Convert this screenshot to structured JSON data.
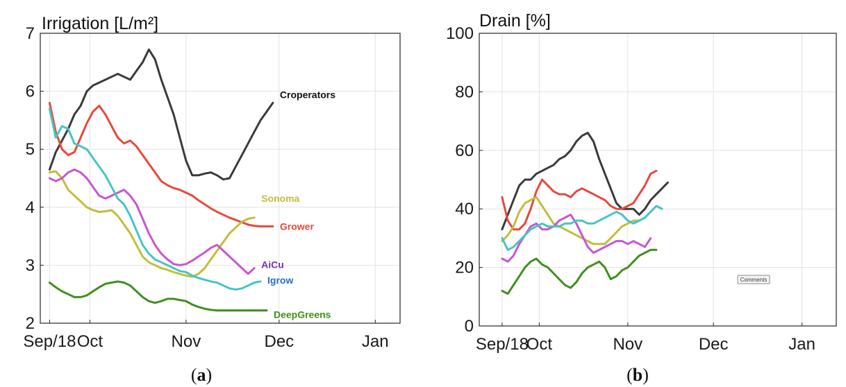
{
  "chart_data": [
    {
      "type": "line",
      "title": "Irrigation [L/m²]",
      "xlabel": "",
      "ylabel": "",
      "panel_label": {
        "open": "(",
        "letter": "a",
        "close": ")"
      },
      "ylim": [
        2,
        7
      ],
      "yticks": [
        2,
        3,
        4,
        5,
        6,
        7
      ],
      "xlim_days": [
        -3,
        113
      ],
      "xticks": [
        {
          "day": 0,
          "label": "Sep/18"
        },
        {
          "day": 13,
          "label": "Oct"
        },
        {
          "day": 44,
          "label": "Nov"
        },
        {
          "day": 74,
          "label": "Dec"
        },
        {
          "day": 105,
          "label": "Jan"
        }
      ],
      "grid": true,
      "series": [
        {
          "name": "Croperators",
          "color": "#3a3a3a",
          "x": [
            0,
            2,
            4,
            6,
            8,
            10,
            12,
            14,
            16,
            18,
            20,
            22,
            24,
            26,
            28,
            30,
            32,
            34,
            36,
            38,
            40,
            42,
            44,
            46,
            48,
            50,
            52,
            54,
            56,
            58,
            60,
            62,
            64,
            66,
            68,
            70,
            72,
            74,
            76,
            78
          ],
          "y": [
            4.65,
            4.95,
            5.15,
            5.35,
            5.6,
            5.75,
            6.0,
            6.1,
            6.15,
            6.2,
            6.25,
            6.3,
            6.25,
            6.2,
            6.35,
            6.5,
            6.72,
            6.55,
            6.2,
            5.9,
            5.6,
            5.2,
            4.8,
            4.55,
            4.55,
            4.58,
            4.6,
            4.55,
            4.48,
            4.5,
            4.7,
            4.9,
            5.1,
            5.3,
            5.5,
            5.65,
            5.8,
            null,
            null,
            null
          ]
        },
        {
          "name": "Grower",
          "color": "#e8483a",
          "x": [
            0,
            2,
            4,
            6,
            8,
            10,
            12,
            14,
            16,
            18,
            20,
            22,
            24,
            26,
            28,
            30,
            32,
            34,
            36,
            38,
            40,
            42,
            44,
            46,
            48,
            50,
            52,
            54,
            56,
            58,
            60,
            62,
            64,
            66,
            68,
            70,
            72,
            74,
            76,
            78
          ],
          "y": [
            5.8,
            5.3,
            5.0,
            4.9,
            4.95,
            5.2,
            5.45,
            5.65,
            5.75,
            5.6,
            5.4,
            5.2,
            5.1,
            5.15,
            5.05,
            4.9,
            4.75,
            4.6,
            4.45,
            4.38,
            4.33,
            4.3,
            4.25,
            4.2,
            4.12,
            4.05,
            3.98,
            3.92,
            3.87,
            3.82,
            3.78,
            3.74,
            3.7,
            3.68,
            3.67,
            3.67,
            3.67,
            null,
            null,
            null
          ]
        },
        {
          "name": "Sonoma",
          "color": "#c2bd3a",
          "x": [
            0,
            2,
            4,
            6,
            8,
            10,
            12,
            14,
            16,
            18,
            20,
            22,
            24,
            26,
            28,
            30,
            32,
            34,
            36,
            38,
            40,
            42,
            44,
            46,
            48,
            50,
            52,
            54,
            56,
            58,
            60,
            62,
            64,
            66,
            68,
            70,
            72,
            74,
            76,
            78
          ],
          "y": [
            4.6,
            4.62,
            4.5,
            4.3,
            4.2,
            4.1,
            4.0,
            3.95,
            3.92,
            3.93,
            3.95,
            3.85,
            3.7,
            3.55,
            3.35,
            3.15,
            3.05,
            3.0,
            2.95,
            2.92,
            2.88,
            2.85,
            2.82,
            2.8,
            2.85,
            2.95,
            3.1,
            3.25,
            3.4,
            3.55,
            3.65,
            3.75,
            3.8,
            3.82,
            null,
            null,
            null,
            null,
            null,
            null
          ]
        },
        {
          "name": "AiCu",
          "color": "#c855d2",
          "x": [
            0,
            2,
            4,
            6,
            8,
            10,
            12,
            14,
            16,
            18,
            20,
            22,
            24,
            26,
            28,
            30,
            32,
            34,
            36,
            38,
            40,
            42,
            44,
            46,
            48,
            50,
            52,
            54,
            56,
            58,
            60,
            62,
            64,
            66,
            68,
            70,
            72,
            74,
            76,
            78
          ],
          "y": [
            4.5,
            4.45,
            4.5,
            4.6,
            4.65,
            4.6,
            4.5,
            4.35,
            4.2,
            4.15,
            4.2,
            4.25,
            4.3,
            4.2,
            4.05,
            3.8,
            3.55,
            3.35,
            3.2,
            3.1,
            3.02,
            3.0,
            3.02,
            3.08,
            3.15,
            3.22,
            3.3,
            3.35,
            3.25,
            3.15,
            3.05,
            2.95,
            2.85,
            2.95,
            null,
            null,
            null,
            null,
            null,
            null
          ]
        },
        {
          "name": "Igrow",
          "color": "#46c4c4",
          "x": [
            0,
            2,
            4,
            6,
            8,
            10,
            12,
            14,
            16,
            18,
            20,
            22,
            24,
            26,
            28,
            30,
            32,
            34,
            36,
            38,
            40,
            42,
            44,
            46,
            48,
            50,
            52,
            54,
            56,
            58,
            60,
            62,
            64,
            66,
            68,
            70,
            72,
            74,
            76,
            78
          ],
          "y": [
            5.7,
            5.2,
            5.4,
            5.35,
            5.1,
            5.05,
            5.0,
            4.85,
            4.7,
            4.55,
            4.35,
            4.15,
            4.05,
            3.85,
            3.6,
            3.35,
            3.2,
            3.1,
            3.05,
            3.0,
            2.95,
            2.9,
            2.88,
            2.82,
            2.78,
            2.75,
            2.72,
            2.7,
            2.65,
            2.6,
            2.58,
            2.6,
            2.65,
            2.7,
            2.72,
            null,
            null,
            null,
            null,
            null
          ]
        },
        {
          "name": "DeepGreens",
          "color": "#3f8f1c",
          "x": [
            0,
            2,
            4,
            6,
            8,
            10,
            12,
            14,
            16,
            18,
            20,
            22,
            24,
            26,
            28,
            30,
            32,
            34,
            36,
            38,
            40,
            42,
            44,
            46,
            48,
            50,
            52,
            54,
            56,
            58,
            60,
            62,
            64,
            66,
            68,
            70,
            72,
            74,
            76,
            78
          ],
          "y": [
            2.7,
            2.62,
            2.55,
            2.5,
            2.45,
            2.45,
            2.48,
            2.55,
            2.62,
            2.68,
            2.7,
            2.72,
            2.7,
            2.65,
            2.55,
            2.45,
            2.38,
            2.35,
            2.38,
            2.42,
            2.42,
            2.4,
            2.38,
            2.32,
            2.28,
            2.25,
            2.23,
            2.22,
            2.22,
            2.22,
            2.22,
            2.22,
            2.22,
            2.22,
            2.22,
            2.22,
            null,
            null,
            null,
            null
          ]
        }
      ]
    },
    {
      "type": "line",
      "title": "Drain [%]",
      "xlabel": "",
      "ylabel": "",
      "panel_label": {
        "open": "(",
        "letter": "b",
        "close": ")"
      },
      "annotation": "Comments",
      "ylim": [
        0,
        100
      ],
      "yticks": [
        0,
        20,
        40,
        60,
        80,
        100
      ],
      "xlim_days": [
        -8,
        117
      ],
      "xticks": [
        {
          "day": 0,
          "label": "Sep/18"
        },
        {
          "day": 13,
          "label": "Oct"
        },
        {
          "day": 44,
          "label": "Nov"
        },
        {
          "day": 74,
          "label": "Dec"
        },
        {
          "day": 105,
          "label": "Jan"
        }
      ],
      "grid": true,
      "series": [
        {
          "name": "Croperators",
          "color": "#3a3a3a",
          "x": [
            0,
            2,
            4,
            6,
            8,
            10,
            12,
            14,
            16,
            18,
            20,
            22,
            24,
            26,
            28,
            30,
            32,
            34,
            36,
            38,
            40,
            42,
            44,
            46,
            48,
            50,
            52,
            54,
            56,
            58,
            60,
            62,
            64,
            66,
            68,
            70,
            72,
            74,
            76,
            78
          ],
          "y": [
            33,
            38,
            43,
            48,
            50,
            50,
            52,
            53,
            54,
            55,
            57,
            58,
            60,
            63,
            65,
            66,
            63,
            57,
            52,
            47,
            42,
            40,
            40,
            40,
            38,
            40,
            43,
            45,
            47,
            49,
            null,
            null,
            null,
            null,
            null,
            null,
            null,
            null,
            null,
            null
          ]
        },
        {
          "name": "Grower",
          "color": "#e8483a",
          "x": [
            0,
            2,
            4,
            6,
            8,
            10,
            12,
            14,
            16,
            18,
            20,
            22,
            24,
            26,
            28,
            30,
            32,
            34,
            36,
            38,
            40,
            42,
            44,
            46,
            48,
            50,
            52,
            54,
            56,
            58,
            60,
            62,
            64,
            66,
            68,
            70,
            72,
            74,
            76,
            78
          ],
          "y": [
            44,
            36,
            33,
            33,
            35,
            40,
            46,
            50,
            48,
            46,
            45,
            45,
            44,
            46,
            47,
            46,
            45,
            44,
            43,
            41,
            40,
            40,
            41,
            42,
            45,
            48,
            52,
            53,
            null,
            null,
            null,
            null,
            null,
            null,
            null,
            null,
            null,
            null,
            null,
            null
          ]
        },
        {
          "name": "Sonoma",
          "color": "#c2bd3a",
          "x": [
            0,
            2,
            4,
            6,
            8,
            10,
            12,
            14,
            16,
            18,
            20,
            22,
            24,
            26,
            28,
            30,
            32,
            34,
            36,
            38,
            40,
            42,
            44,
            46,
            48,
            50,
            52,
            54,
            56,
            58,
            60,
            62,
            64,
            66,
            68,
            70,
            72,
            74,
            76,
            78
          ],
          "y": [
            29,
            31,
            34,
            39,
            42,
            43,
            44,
            41,
            38,
            35,
            34,
            33,
            32,
            31,
            30,
            29,
            28,
            28,
            28,
            30,
            32,
            34,
            35,
            36,
            36,
            37,
            null,
            null,
            null,
            null,
            null,
            null,
            null,
            null,
            null,
            null,
            null,
            null,
            null,
            null
          ]
        },
        {
          "name": "AiCu",
          "color": "#c855d2",
          "x": [
            0,
            2,
            4,
            6,
            8,
            10,
            12,
            14,
            16,
            18,
            20,
            22,
            24,
            26,
            28,
            30,
            32,
            34,
            36,
            38,
            40,
            42,
            44,
            46,
            48,
            50,
            52,
            54,
            56,
            58,
            60,
            62,
            64,
            66,
            68,
            70,
            72,
            74,
            76,
            78
          ],
          "y": [
            23,
            22,
            24,
            28,
            31,
            34,
            35,
            33,
            33,
            34,
            36,
            37,
            38,
            35,
            31,
            27,
            25,
            26,
            27,
            28,
            29,
            29,
            28,
            29,
            28,
            27,
            30,
            null,
            null,
            null,
            null,
            null,
            null,
            null,
            null,
            null,
            null,
            null,
            null,
            null
          ]
        },
        {
          "name": "Igrow",
          "color": "#46c4c4",
          "x": [
            0,
            2,
            4,
            6,
            8,
            10,
            12,
            14,
            16,
            18,
            20,
            22,
            24,
            26,
            28,
            30,
            32,
            34,
            36,
            38,
            40,
            42,
            44,
            46,
            48,
            50,
            52,
            54,
            56,
            58,
            60,
            62,
            64,
            66,
            68,
            70,
            72,
            74,
            76,
            78
          ],
          "y": [
            30,
            26,
            27,
            29,
            31,
            33,
            34,
            35,
            34,
            34,
            34,
            35,
            35,
            36,
            36,
            35,
            35,
            36,
            37,
            38,
            39,
            38,
            36,
            35,
            36,
            37,
            39,
            41,
            40,
            null,
            null,
            null,
            null,
            null,
            null,
            null,
            null,
            null,
            null,
            null
          ]
        },
        {
          "name": "DeepGreens",
          "color": "#3f8f1c",
          "x": [
            0,
            2,
            4,
            6,
            8,
            10,
            12,
            14,
            16,
            18,
            20,
            22,
            24,
            26,
            28,
            30,
            32,
            34,
            36,
            38,
            40,
            42,
            44,
            46,
            48,
            50,
            52,
            54,
            56,
            58,
            60,
            62,
            64,
            66,
            68,
            70,
            72,
            74,
            76,
            78
          ],
          "y": [
            12,
            11,
            14,
            17,
            20,
            22,
            23,
            21,
            20,
            18,
            16,
            14,
            13,
            15,
            18,
            20,
            21,
            22,
            20,
            16,
            17,
            19,
            20,
            22,
            24,
            25,
            26,
            26,
            null,
            null,
            null,
            null,
            null,
            null,
            null,
            null,
            null,
            null,
            null,
            null
          ]
        }
      ]
    }
  ]
}
